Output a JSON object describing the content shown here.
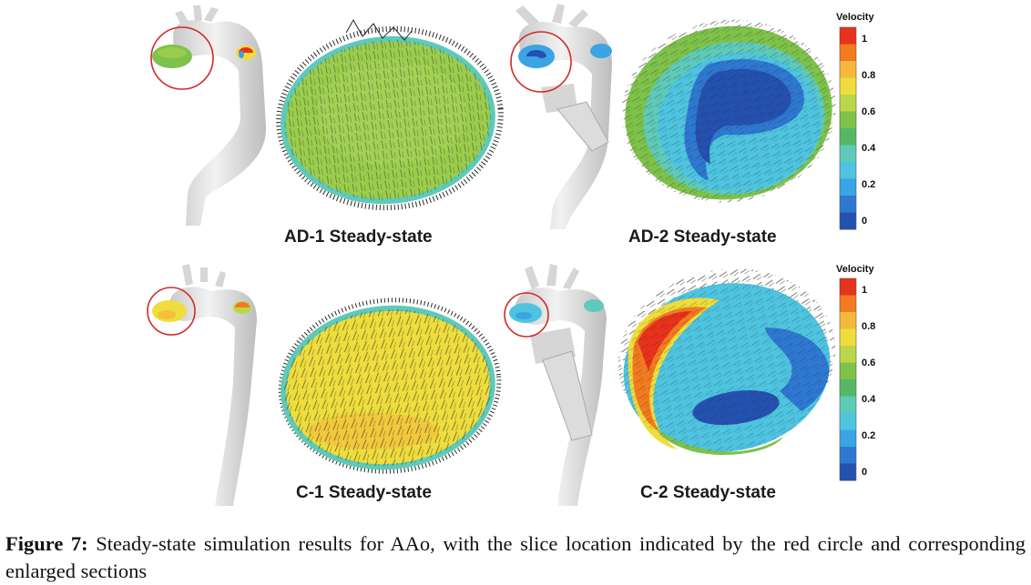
{
  "panels": [
    {
      "id": "AD-1",
      "label": "AD-1 Steady-state"
    },
    {
      "id": "AD-2",
      "label": "AD-2 Steady-state"
    },
    {
      "id": "C-1",
      "label": "C-1 Steady-state"
    },
    {
      "id": "C-2",
      "label": "C-2 Steady-state"
    }
  ],
  "colorbar": {
    "title": "Velocity",
    "ticks": [
      "1",
      "0.8",
      "0.6",
      "0.4",
      "0.2",
      "0"
    ],
    "colors": [
      "#e8321c",
      "#f27a1f",
      "#f5b83a",
      "#eedd3c",
      "#bcd64a",
      "#7ec24a",
      "#55b766",
      "#5fcab7",
      "#4ec4e0",
      "#3aa4e4",
      "#2e78d2",
      "#2451b0"
    ]
  },
  "caption": {
    "label": "Figure 7:",
    "text": "Steady-state simulation results for AAo, with the slice location indicated by the red circle and corresponding enlarged sections"
  }
}
